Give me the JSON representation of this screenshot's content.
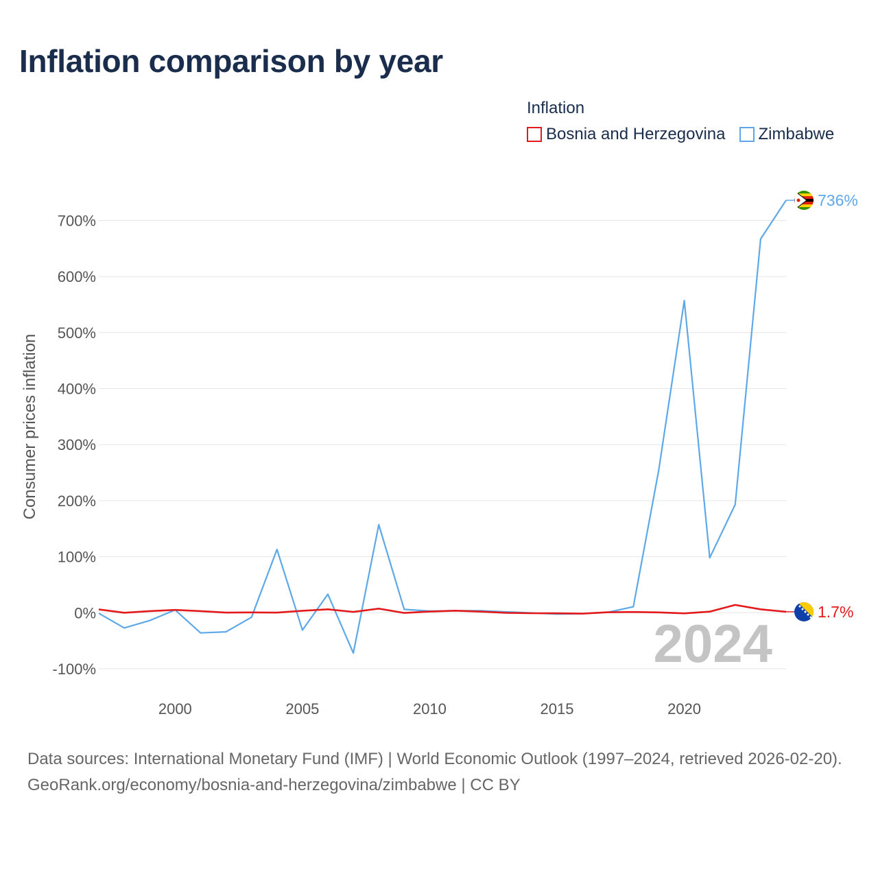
{
  "title": "Inflation comparison by year",
  "legend": {
    "title": "Inflation",
    "items": [
      {
        "label": "Bosnia and Herzegovina",
        "color": "#e31a1c"
      },
      {
        "label": "Zimbabwe",
        "color": "#5da8e8"
      }
    ]
  },
  "footer": {
    "line1": "Data sources: International Monetary Fund (IMF) | World Economic Outlook (1997–2024, retrieved 2026-02-20).",
    "line2": "GeoRank.org/economy/bosnia-and-herzegovina/zimbabwe | CC BY"
  },
  "chart_data": {
    "type": "line",
    "ylabel": "Consumer prices inflation",
    "xlabel": "",
    "xlim": [
      1997,
      2024
    ],
    "ylim": [
      -100,
      736
    ],
    "yticks": [
      -100,
      0,
      100,
      200,
      300,
      400,
      500,
      600,
      700
    ],
    "ytick_labels": [
      "-100%",
      "0%",
      "100%",
      "200%",
      "300%",
      "400%",
      "500%",
      "600%",
      "700%"
    ],
    "xticks": [
      2000,
      2005,
      2010,
      2015,
      2020
    ],
    "xtick_labels": [
      "2000",
      "2005",
      "2010",
      "2015",
      "2020"
    ],
    "current_year": "2024",
    "x": [
      1997,
      1998,
      1999,
      2000,
      2001,
      2002,
      2003,
      2004,
      2005,
      2006,
      2007,
      2008,
      2009,
      2010,
      2011,
      2012,
      2013,
      2014,
      2015,
      2016,
      2017,
      2018,
      2019,
      2020,
      2021,
      2022,
      2023,
      2024
    ],
    "series": [
      {
        "name": "Bosnia and Herzegovina",
        "color": "#e31a1c",
        "end_label": "1.7%",
        "values": [
          6,
          0,
          3,
          5,
          3,
          0.3,
          0.6,
          0.3,
          3.6,
          6.1,
          1.5,
          7.4,
          -0.4,
          2.1,
          3.7,
          2.0,
          -0.1,
          -0.9,
          -1.0,
          -1.6,
          0.8,
          1.4,
          0.6,
          -1.1,
          2.0,
          14.0,
          6.1,
          1.7
        ]
      },
      {
        "name": "Zimbabwe",
        "color": "#5da8e8",
        "end_label": "736%",
        "values": [
          -1,
          -27,
          -14,
          5,
          -36,
          -34,
          -8,
          113,
          -31,
          33,
          -72,
          157,
          6,
          3,
          3.5,
          3.7,
          1.6,
          -0.2,
          -2.4,
          -1.6,
          0.9,
          10.6,
          255,
          557,
          98,
          193,
          667,
          736
        ]
      }
    ]
  }
}
